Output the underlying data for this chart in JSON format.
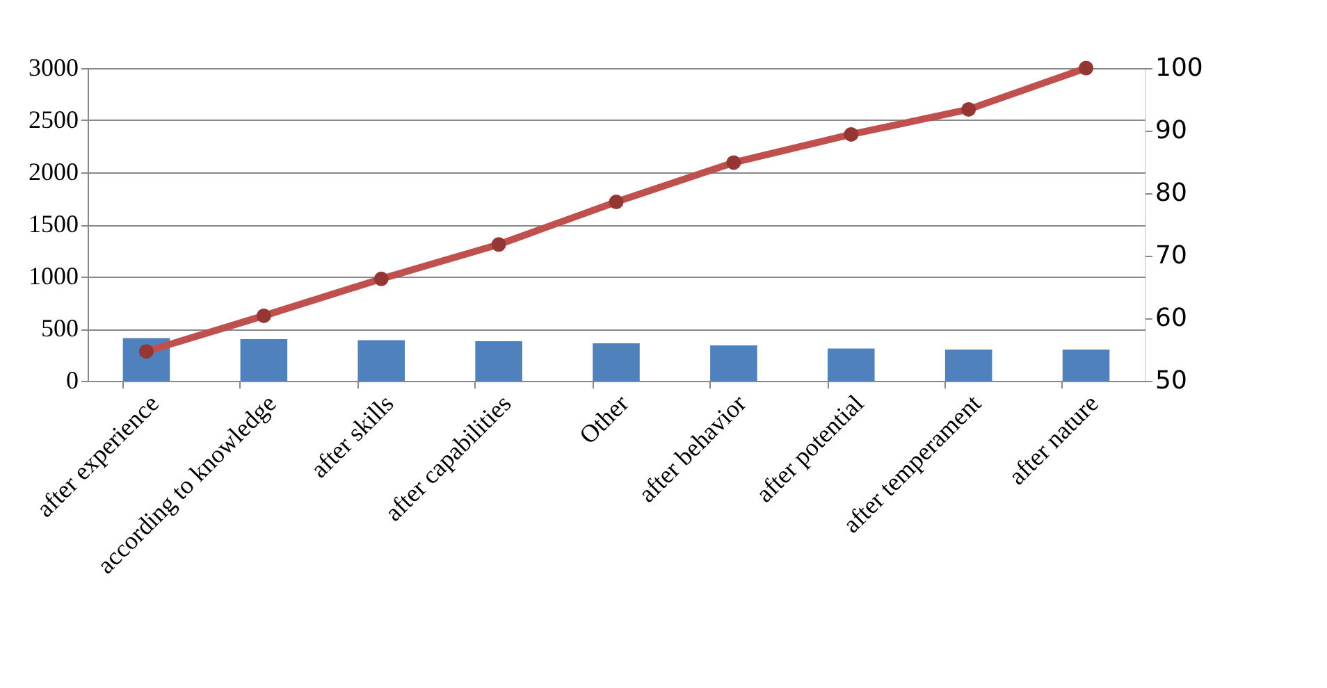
{
  "chart_data": {
    "type": "bar",
    "categories": [
      "after experience",
      "according to knowledge",
      "after skills",
      "after capabilities",
      "Other",
      "after behavior",
      "after potential",
      "after temperament",
      "after nature"
    ],
    "series": [
      {
        "color": "#4f81bd",
        "values": [
          410,
          400,
          390,
          380,
          360,
          340,
          310,
          300,
          300
        ]
      },
      {
        "type": "line",
        "axis": "y2",
        "color": "#c0504d",
        "marker": "circle",
        "values": [
          54.7,
          60.4,
          66.3,
          71.8,
          78.6,
          84.9,
          89.4,
          93.4,
          100
        ]
      }
    ],
    "ylim": [
      0,
      3000
    ],
    "yticks": [
      0,
      500,
      1000,
      1500,
      2000,
      2500,
      3000
    ],
    "y2lim": [
      50,
      100
    ],
    "y2ticks": [
      50,
      60,
      70,
      80,
      90,
      100
    ],
    "grid": "y"
  }
}
